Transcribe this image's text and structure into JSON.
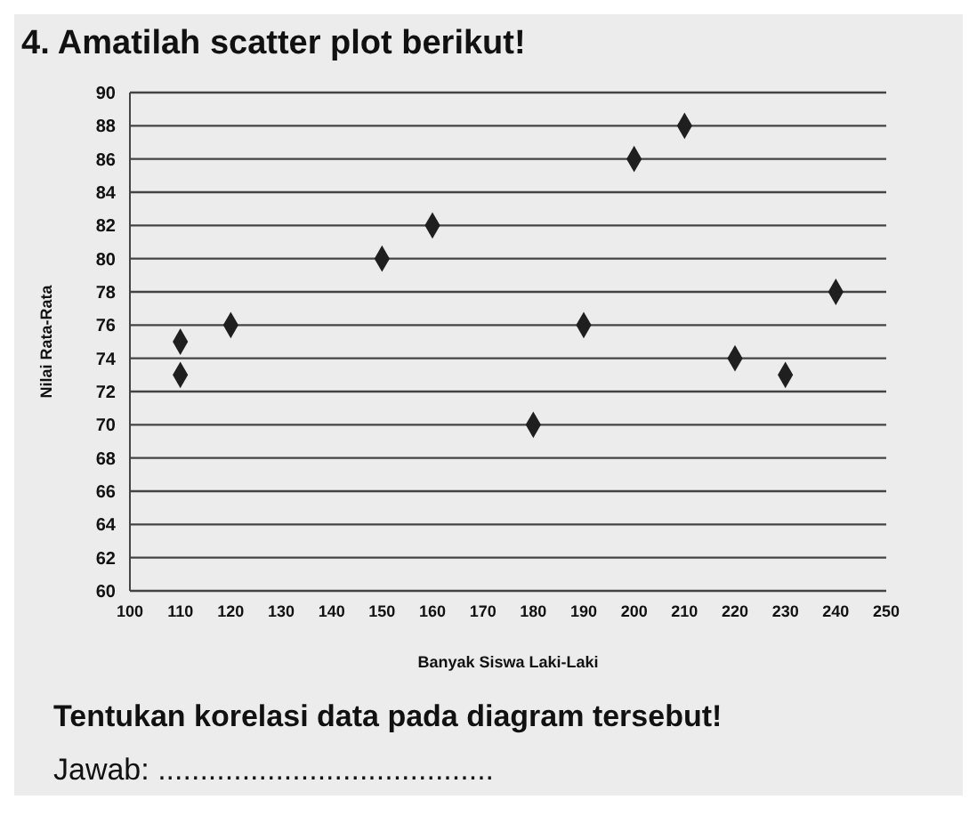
{
  "chart_data": {
    "type": "scatter",
    "title": "4. Amatilah scatter plot berikut!",
    "xlabel": "Banyak Siswa Laki-Laki",
    "ylabel": "Nilai Rata-Rata",
    "x": [
      110,
      110,
      120,
      150,
      160,
      180,
      190,
      200,
      210,
      220,
      230,
      240
    ],
    "values": [
      75,
      73,
      76,
      80,
      82,
      70,
      76,
      86,
      88,
      74,
      73,
      78
    ],
    "color": "#1f1f1f",
    "marker": "diamond",
    "grid": "y",
    "legend": false,
    "xlim": [
      100,
      250
    ],
    "xticks": [
      100,
      110,
      120,
      130,
      140,
      150,
      160,
      170,
      180,
      190,
      200,
      210,
      220,
      230,
      240,
      250
    ],
    "ylim": [
      60,
      90
    ],
    "yticks": [
      60,
      62,
      64,
      66,
      68,
      70,
      72,
      74,
      76,
      78,
      80,
      82,
      84,
      86,
      88,
      90
    ],
    "annotations": [
      "Tentukan korelasi data pada diagram tersebut!",
      "Jawab: ........................................"
    ]
  }
}
